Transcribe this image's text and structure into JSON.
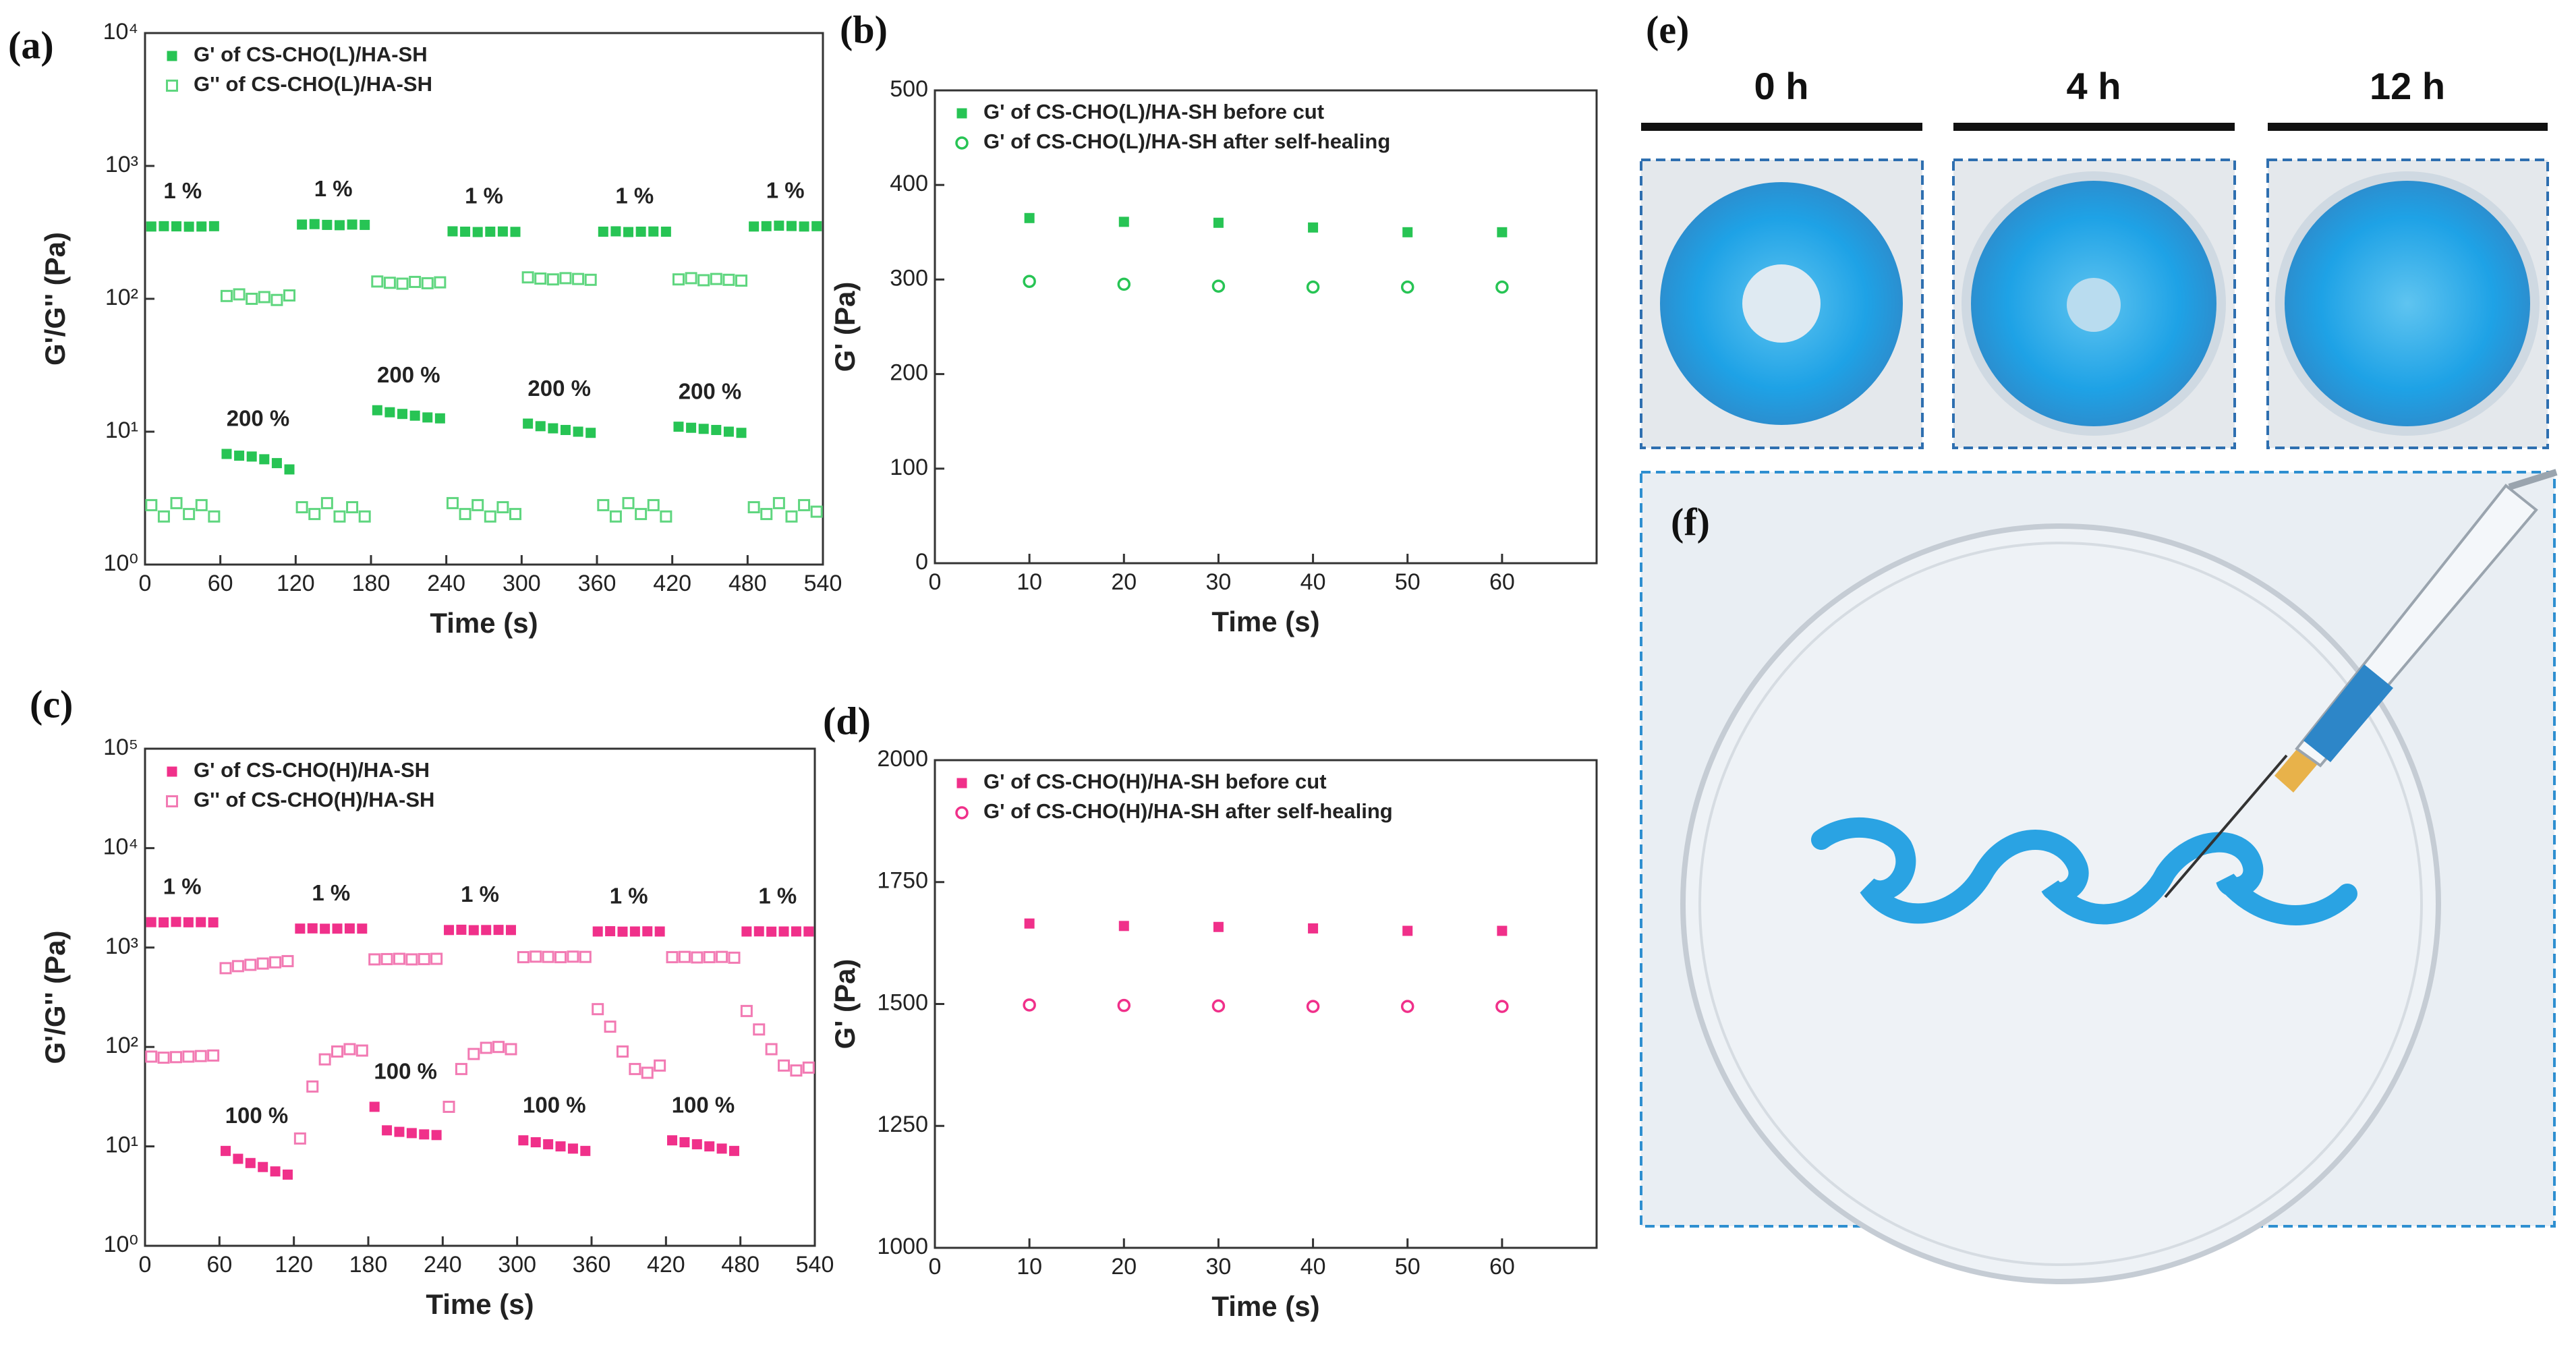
{
  "chart_data": [
    {
      "type": "scatter",
      "panel": "(a)",
      "xlabel": "Time (s)",
      "ylabel": "G'/G'' (Pa)",
      "yscale": "log",
      "legend": "upper left",
      "x": [
        5,
        15,
        25,
        35,
        45,
        55,
        65,
        75,
        85,
        95,
        105,
        115,
        125,
        135,
        145,
        155,
        165,
        175,
        185,
        195,
        205,
        215,
        225,
        235,
        245,
        255,
        265,
        275,
        285,
        295,
        305,
        315,
        325,
        335,
        345,
        355,
        365,
        375,
        385,
        395,
        405,
        415,
        425,
        435,
        445,
        455,
        465,
        475,
        485,
        495,
        505,
        515,
        525,
        535
      ],
      "xlim": [
        0,
        540
      ],
      "xticks": [
        0,
        60,
        120,
        180,
        240,
        300,
        360,
        420,
        480,
        540
      ],
      "ylim": [
        1,
        10000
      ],
      "yticks": [
        {
          "value": 1,
          "label": "10⁰"
        },
        {
          "value": 10,
          "label": "10¹"
        },
        {
          "value": 100,
          "label": "10²"
        },
        {
          "value": 1000,
          "label": "10³"
        },
        {
          "value": 10000,
          "label": "10⁴"
        }
      ],
      "series": [
        {
          "name": "G'  of CS-CHO(L)/HA-SH",
          "color": "#27c454",
          "marker": "square-filled",
          "values": [
            350,
            352,
            351,
            349,
            350,
            352,
            6.8,
            6.6,
            6.5,
            6.2,
            5.8,
            5.2,
            362,
            365,
            360,
            358,
            362,
            360,
            14.5,
            14,
            13.6,
            13.2,
            12.8,
            12.6,
            322,
            320,
            318,
            320,
            321,
            319,
            11.5,
            11,
            10.6,
            10.3,
            10,
            9.8,
            320,
            322,
            318,
            320,
            321,
            320,
            10.9,
            10.7,
            10.5,
            10.3,
            10,
            9.8,
            350,
            352,
            355,
            353,
            350,
            352
          ]
        },
        {
          "name": "G'' of CS-CHO(L)/HA-SH",
          "color": "#5fd67f",
          "marker": "square-open",
          "values": [
            2.8,
            2.3,
            2.9,
            2.4,
            2.8,
            2.3,
            105,
            108,
            100,
            103,
            98,
            106,
            2.7,
            2.4,
            2.9,
            2.3,
            2.7,
            2.3,
            135,
            132,
            130,
            134,
            131,
            133,
            2.9,
            2.4,
            2.8,
            2.3,
            2.7,
            2.4,
            145,
            142,
            140,
            143,
            141,
            139,
            2.8,
            2.3,
            2.9,
            2.4,
            2.8,
            2.3,
            140,
            143,
            138,
            141,
            139,
            137,
            2.7,
            2.4,
            2.9,
            2.3,
            2.8,
            2.5
          ]
        }
      ],
      "annotations": [
        "1 %",
        "200 %",
        "1 %",
        "200 %",
        "1 %",
        "200 %",
        "1 %",
        "200 %",
        "1 %"
      ]
    },
    {
      "type": "scatter",
      "panel": "(b)",
      "xlabel": "Time (s)",
      "ylabel": "G' (Pa)",
      "legend": "upper left",
      "x": [
        10,
        20,
        30,
        40,
        50,
        60
      ],
      "xlim": [
        0,
        70
      ],
      "xticks": [
        0,
        10,
        20,
        30,
        40,
        50,
        60
      ],
      "ylim": [
        0,
        500
      ],
      "yticks": [
        0,
        100,
        200,
        300,
        400,
        500
      ],
      "series": [
        {
          "name": "G' of CS-CHO(L)/HA-SH before cut",
          "color": "#27c454",
          "marker": "square-filled",
          "values": [
            365,
            361,
            360,
            355,
            350,
            350
          ]
        },
        {
          "name": "G' of CS-CHO(L)/HA-SH after self-healing",
          "color": "#27c454",
          "marker": "circle-open",
          "values": [
            298,
            295,
            293,
            292,
            292,
            292
          ]
        }
      ]
    },
    {
      "type": "scatter",
      "panel": "(c)",
      "xlabel": "Time (s)",
      "ylabel": "G'/G'' (Pa)",
      "yscale": "log",
      "legend": "upper left",
      "x": [
        5,
        15,
        25,
        35,
        45,
        55,
        65,
        75,
        85,
        95,
        105,
        115,
        125,
        135,
        145,
        155,
        165,
        175,
        185,
        195,
        205,
        215,
        225,
        235,
        245,
        255,
        265,
        275,
        285,
        295,
        305,
        315,
        325,
        335,
        345,
        355,
        365,
        375,
        385,
        395,
        405,
        415,
        425,
        435,
        445,
        455,
        465,
        475,
        485,
        495,
        505,
        515,
        525,
        535
      ],
      "xlim": [
        0,
        540
      ],
      "xticks": [
        0,
        60,
        120,
        180,
        240,
        300,
        360,
        420,
        480,
        540
      ],
      "ylim": [
        1,
        100000
      ],
      "yticks": [
        {
          "value": 1,
          "label": "10⁰"
        },
        {
          "value": 10,
          "label": "10¹"
        },
        {
          "value": 100,
          "label": "10²"
        },
        {
          "value": 1000,
          "label": "10³"
        },
        {
          "value": 10000,
          "label": "10⁴"
        },
        {
          "value": 100000,
          "label": "10⁵"
        }
      ],
      "series": [
        {
          "name": "G'  of CS-CHO(H)/HA-SH",
          "color": "#f0308a",
          "marker": "square-filled",
          "values": [
            1800,
            1790,
            1810,
            1795,
            1800,
            1790,
            9,
            7.5,
            6.8,
            6.2,
            5.6,
            5.2,
            1550,
            1560,
            1545,
            1550,
            1555,
            1550,
            25,
            14.5,
            14,
            13.6,
            13.2,
            13,
            1500,
            1510,
            1495,
            1500,
            1505,
            1500,
            11.5,
            11,
            10.5,
            10,
            9.5,
            9,
            1450,
            1460,
            1445,
            1450,
            1455,
            1450,
            11.5,
            11,
            10.5,
            10,
            9.5,
            9,
            1450,
            1455,
            1445,
            1450,
            1452,
            1450
          ]
        },
        {
          "name": "G'' of CS-CHO(H)/HA-SH",
          "color": "#f27ab3",
          "marker": "square-open",
          "values": [
            80,
            78,
            79,
            80,
            81,
            82,
            620,
            650,
            670,
            690,
            710,
            730,
            12,
            40,
            75,
            90,
            95,
            92,
            760,
            765,
            770,
            760,
            765,
            770,
            25,
            60,
            85,
            98,
            100,
            95,
            800,
            810,
            805,
            800,
            810,
            805,
            240,
            160,
            90,
            60,
            55,
            65,
            800,
            805,
            795,
            800,
            805,
            790,
            230,
            150,
            95,
            65,
            58,
            62
          ]
        }
      ],
      "annotations": [
        "1 %",
        "100 %",
        "1 %",
        "100 %",
        "1 %",
        "100 %",
        "1 %",
        "100 %",
        "1 %"
      ]
    },
    {
      "type": "scatter",
      "panel": "(d)",
      "xlabel": "Time (s)",
      "ylabel": "G' (Pa)",
      "legend": "upper left",
      "x": [
        10,
        20,
        30,
        40,
        50,
        60
      ],
      "xlim": [
        0,
        70
      ],
      "xticks": [
        0,
        10,
        20,
        30,
        40,
        50,
        60
      ],
      "ylim": [
        1000,
        2000
      ],
      "yticks": [
        1000,
        1250,
        1500,
        1750,
        2000
      ],
      "series": [
        {
          "name": "G' of CS-CHO(H)/HA-SH before cut",
          "color": "#f0308a",
          "marker": "square-filled",
          "values": [
            1665,
            1660,
            1658,
            1655,
            1650,
            1650
          ]
        },
        {
          "name": "G' of CS-CHO(H)/HA-SH after self-healing",
          "color": "#f0308a",
          "marker": "circle-open",
          "values": [
            1498,
            1497,
            1496,
            1495,
            1495,
            1495
          ]
        }
      ]
    }
  ],
  "panels": {
    "e": {
      "label": "(e)",
      "times": [
        "0 h",
        "4 h",
        "12 h"
      ]
    },
    "f": {
      "label": "(f)"
    }
  }
}
